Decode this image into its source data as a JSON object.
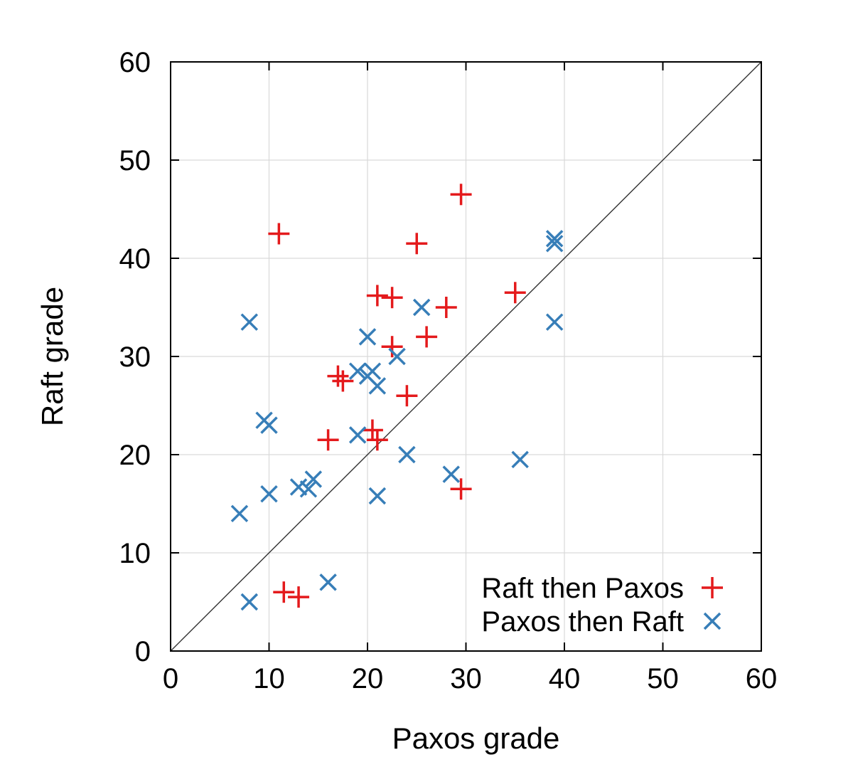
{
  "chart_data": {
    "type": "scatter",
    "xlabel": "Paxos grade",
    "ylabel": "Raft grade",
    "xlim": [
      0,
      60
    ],
    "ylim": [
      0,
      60
    ],
    "xticks": [
      0,
      10,
      20,
      30,
      40,
      50,
      60
    ],
    "yticks": [
      0,
      10,
      20,
      30,
      40,
      50,
      60
    ],
    "grid": true,
    "legend_position": "bottom-right",
    "reference_line": "y = x",
    "series": [
      {
        "name": "Raft then Paxos",
        "marker": "plus",
        "color": "#e41a1c",
        "points": [
          [
            11,
            42.5
          ],
          [
            29.5,
            46.5
          ],
          [
            25,
            41.5
          ],
          [
            21,
            36.2
          ],
          [
            22.5,
            36
          ],
          [
            28,
            35
          ],
          [
            35,
            36.5
          ],
          [
            26,
            32
          ],
          [
            22.5,
            31
          ],
          [
            17,
            28
          ],
          [
            17.5,
            27.5
          ],
          [
            24,
            26
          ],
          [
            16,
            21.5
          ],
          [
            20.5,
            22.5
          ],
          [
            21,
            21.5
          ],
          [
            29.5,
            16.5
          ],
          [
            11.5,
            6
          ],
          [
            13,
            5.5
          ]
        ]
      },
      {
        "name": "Paxos then Raft",
        "marker": "cross",
        "color": "#377eb8",
        "points": [
          [
            8,
            33.5
          ],
          [
            9.5,
            23.5
          ],
          [
            10,
            23
          ],
          [
            10,
            16
          ],
          [
            7,
            14
          ],
          [
            8,
            5
          ],
          [
            13,
            16.7
          ],
          [
            14,
            16.5
          ],
          [
            14.5,
            17.5
          ],
          [
            16,
            7
          ],
          [
            19,
            22
          ],
          [
            19,
            28.5
          ],
          [
            20,
            28
          ],
          [
            20.5,
            28.5
          ],
          [
            21,
            27
          ],
          [
            20,
            32
          ],
          [
            23,
            30
          ],
          [
            25.5,
            35
          ],
          [
            21,
            15.8
          ],
          [
            24,
            20
          ],
          [
            28.5,
            18
          ],
          [
            35.5,
            19.5
          ],
          [
            39,
            42
          ],
          [
            39,
            41.5
          ],
          [
            39,
            33.5
          ]
        ]
      }
    ]
  }
}
